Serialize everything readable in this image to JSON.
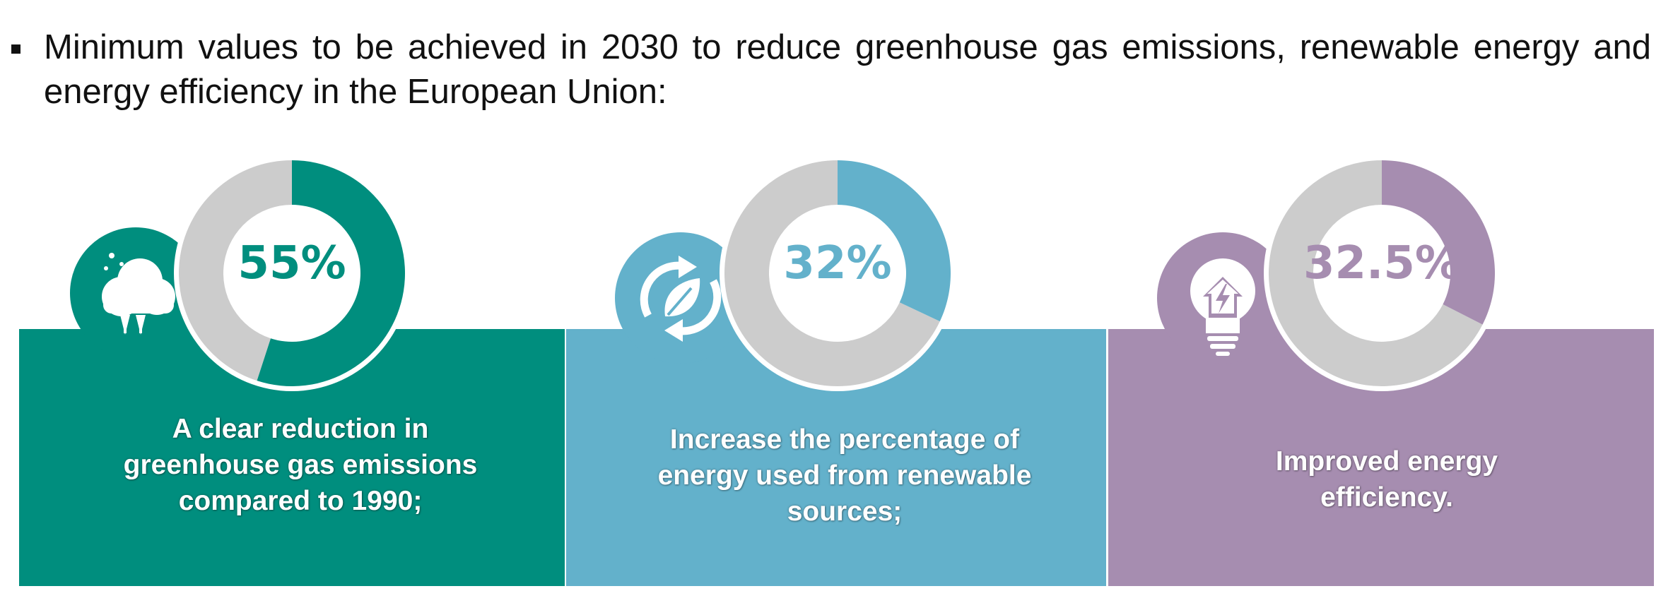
{
  "intro": {
    "text": "Minimum values to be achieved in 2030 to reduce greenhouse gas emissions, renewable energy and energy efficiency in the European Union:"
  },
  "colors": {
    "teal": "#008E7E",
    "blue": "#63B1CB",
    "purple": "#A68DB0",
    "grey": "#CCCCCC"
  },
  "chart_data": [
    {
      "type": "pie",
      "style": "donut",
      "value_label": "55%",
      "values": [
        55,
        45
      ],
      "color": "#008E7E",
      "description": "A clear reduction in greenhouse gas emissions compared to 1990;",
      "icon": "cloud-icon"
    },
    {
      "type": "pie",
      "style": "donut",
      "value_label": "32%",
      "values": [
        32,
        68
      ],
      "color": "#63B1CB",
      "description": "Increase the percentage of energy used from renewable sources;",
      "icon": "renewable-leaf-icon"
    },
    {
      "type": "pie",
      "style": "donut",
      "value_label": "32.5%",
      "values": [
        32.5,
        67.5
      ],
      "color": "#A68DB0",
      "description": "Improved energy efficiency.",
      "icon": "lightbulb-house-icon"
    }
  ]
}
